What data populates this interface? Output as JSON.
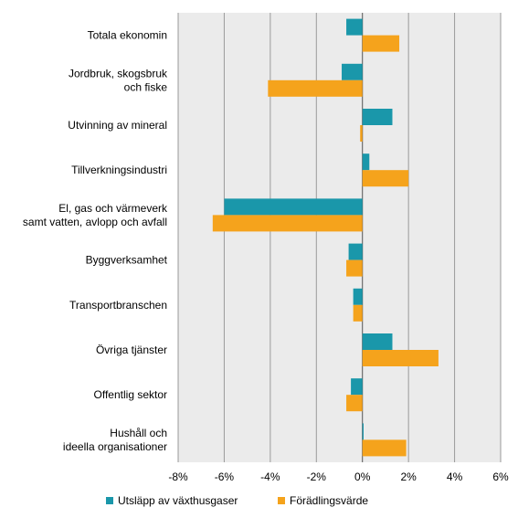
{
  "chart_data": {
    "type": "bar",
    "orientation": "horizontal",
    "categories": [
      [
        "Totala ekonomin"
      ],
      [
        "Jordbruk, skogsbruk",
        "och fiske"
      ],
      [
        "Utvinning av mineral"
      ],
      [
        "Tillverkningsindustri"
      ],
      [
        "El, gas och värmeverk",
        "samt vatten, avlopp och avfall"
      ],
      [
        "Byggverksamhet"
      ],
      [
        "Transportbranschen"
      ],
      [
        "Övriga tjänster"
      ],
      [
        "Offentlig sektor"
      ],
      [
        "Hushåll och",
        "ideella organisationer"
      ]
    ],
    "series": [
      {
        "name": "Utsläpp av växthusgaser",
        "color": "#1a97aa",
        "values": [
          -0.7,
          -0.9,
          1.3,
          0.3,
          -6.0,
          -0.6,
          -0.4,
          1.3,
          -0.5,
          0.05
        ]
      },
      {
        "name": "Förädlingsvärde",
        "color": "#f5a31c",
        "values": [
          1.6,
          -4.1,
          -0.1,
          2.0,
          -6.5,
          -0.7,
          -0.4,
          3.3,
          -0.7,
          1.9
        ]
      }
    ],
    "xlim": [
      -8,
      6
    ],
    "xticks": [
      -8,
      -6,
      -4,
      -2,
      0,
      2,
      4,
      6
    ],
    "tick_format": "percent",
    "grid": true,
    "legend_position": "bottom"
  }
}
